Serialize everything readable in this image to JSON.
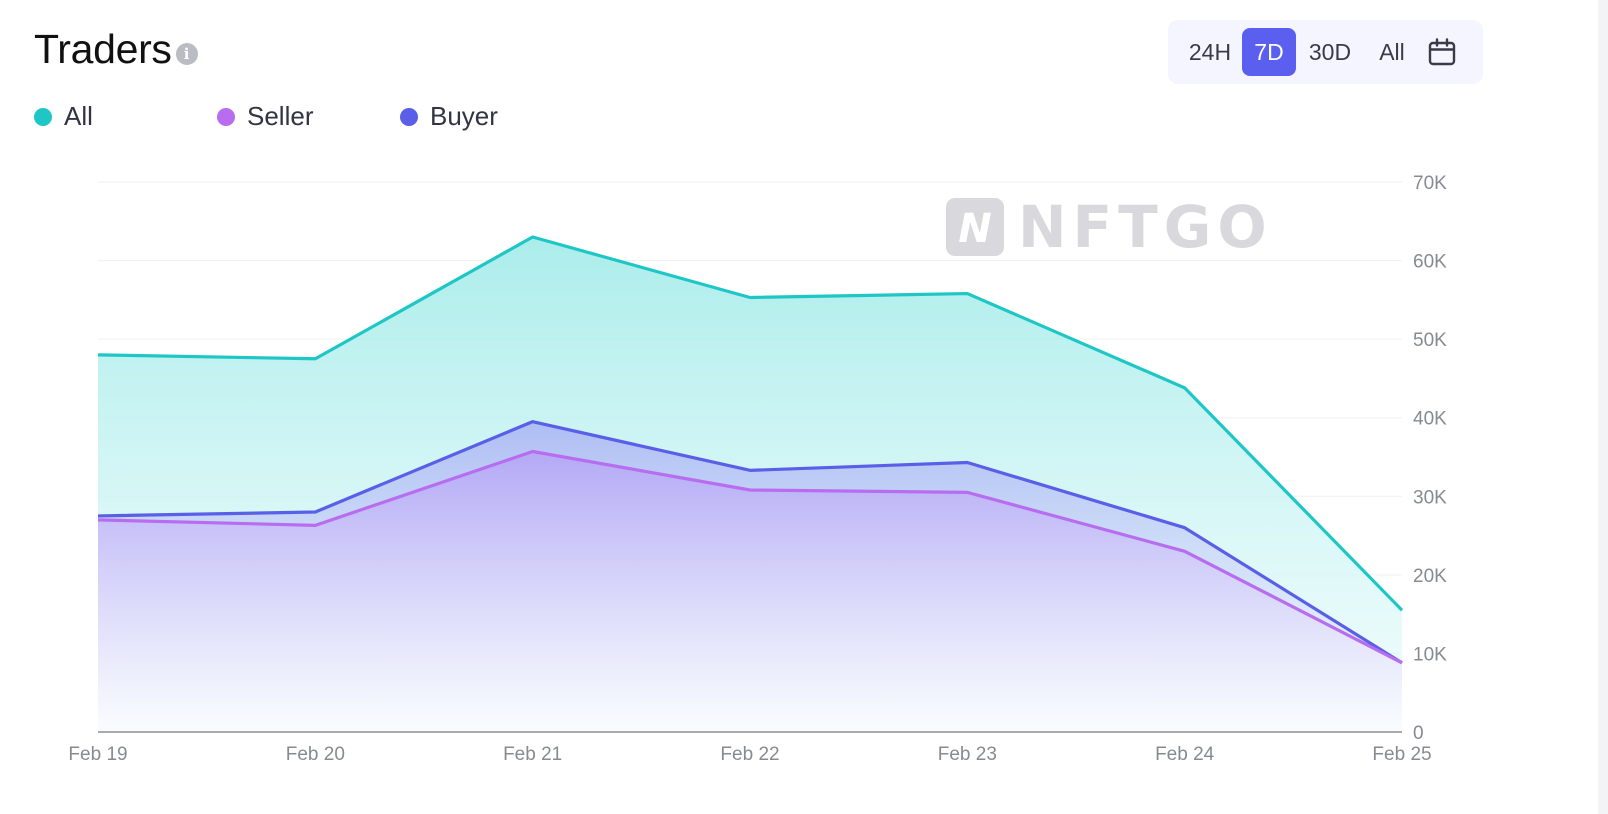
{
  "header": {
    "title": "Traders",
    "info_icon": "info-icon"
  },
  "legend": [
    {
      "label": "All",
      "color": "#1fc6c6"
    },
    {
      "label": "Seller",
      "color": "#b86df0"
    },
    {
      "label": "Buyer",
      "color": "#5a5fe8"
    }
  ],
  "range_selector": {
    "options": [
      "24H",
      "7D",
      "30D",
      "All"
    ],
    "selected": "7D",
    "calendar_icon": "calendar-icon"
  },
  "watermark": {
    "text": "NFTGO",
    "logo_letter": "N"
  },
  "chart_data": {
    "type": "area",
    "categories": [
      "Feb 19",
      "Feb 20",
      "Feb 21",
      "Feb 22",
      "Feb 23",
      "Feb 24",
      "Feb 25"
    ],
    "series": [
      {
        "name": "All",
        "color": "#1fc6c6",
        "values": [
          48000,
          47500,
          63000,
          55300,
          55800,
          43800,
          15500
        ]
      },
      {
        "name": "Buyer",
        "color": "#5a5fe8",
        "values": [
          27500,
          28000,
          39500,
          33300,
          34300,
          26000,
          8800
        ]
      },
      {
        "name": "Seller",
        "color": "#b86df0",
        "values": [
          27000,
          26300,
          35700,
          30800,
          30500,
          23000,
          8800
        ]
      }
    ],
    "y_ticks": [
      "0",
      "10K",
      "20K",
      "30K",
      "40K",
      "50K",
      "60K",
      "70K"
    ],
    "ylim": [
      0,
      70000
    ],
    "y_axis_position": "right",
    "grid": true,
    "legend_position": "top-left"
  }
}
